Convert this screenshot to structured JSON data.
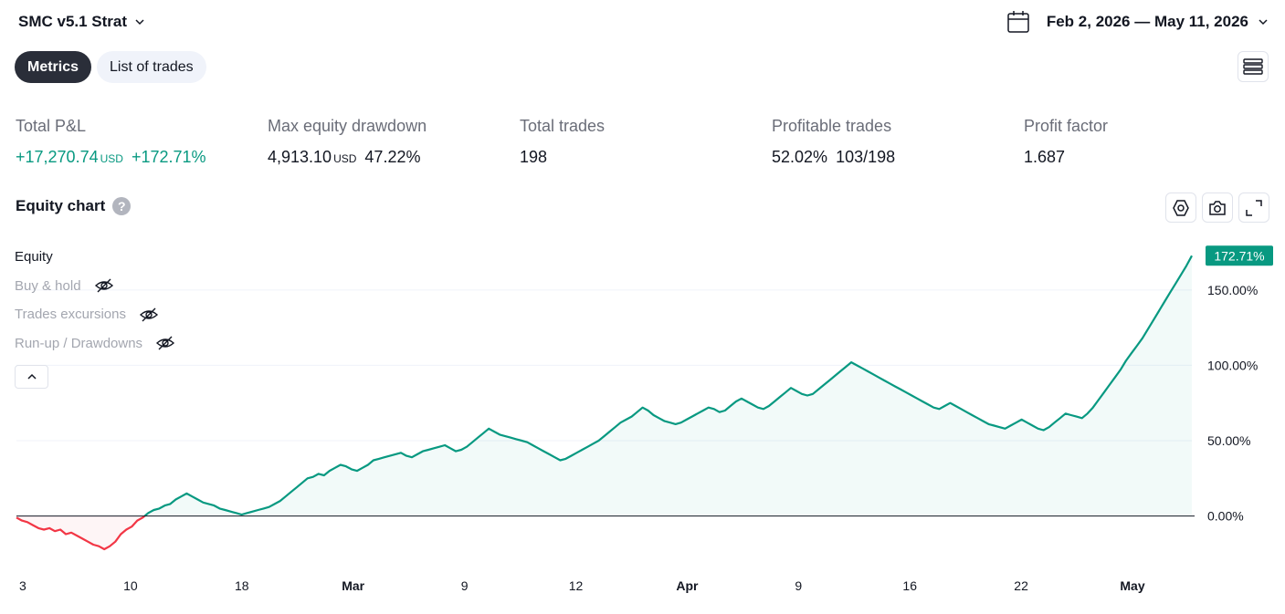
{
  "header": {
    "strategy_name": "SMC v5.1 Strat",
    "date_range": "Feb 2, 2026 — May 11, 2026"
  },
  "tabs": [
    {
      "label": "Metrics",
      "active": true
    },
    {
      "label": "List of trades",
      "active": false
    }
  ],
  "metrics": {
    "total_pnl": {
      "label": "Total P&L",
      "value": "+17,270.74",
      "unit": "USD",
      "percent": "+172.71%"
    },
    "max_drawdown": {
      "label": "Max equity drawdown",
      "value": "4,913.10",
      "unit": "USD",
      "percent": "47.22%"
    },
    "total_trades": {
      "label": "Total trades",
      "value": "198"
    },
    "profitable_trades": {
      "label": "Profitable trades",
      "percent": "52.02%",
      "ratio": "103/198"
    },
    "profit_factor": {
      "label": "Profit factor",
      "value": "1.687"
    }
  },
  "equity_chart": {
    "title": "Equity chart",
    "help_icon": "?",
    "legend": [
      {
        "label": "Equity",
        "visible": true
      },
      {
        "label": "Buy & hold",
        "visible": false
      },
      {
        "label": "Trades excursions",
        "visible": false
      },
      {
        "label": "Run-up / Drawdowns",
        "visible": false
      }
    ]
  },
  "colors": {
    "positive": "#089981",
    "negative": "#f23645",
    "accent_dark": "#2a2e39"
  },
  "chart_data": {
    "type": "area",
    "series": [
      {
        "name": "Equity",
        "values": [
          -1,
          -3,
          -4,
          -6,
          -8,
          -9,
          -8,
          -10,
          -9,
          -12,
          -11,
          -13,
          -15,
          -17,
          -19,
          -20,
          -22,
          -20,
          -17,
          -12,
          -9,
          -7,
          -3,
          -1,
          2,
          4,
          5,
          7,
          8,
          11,
          13,
          15,
          13,
          11,
          9,
          8,
          7,
          5,
          4,
          3,
          2,
          1,
          2,
          3,
          4,
          5,
          6,
          8,
          10,
          13,
          16,
          19,
          22,
          25,
          26,
          28,
          27,
          30,
          32,
          34,
          33,
          31,
          30,
          32,
          34,
          37,
          38,
          39,
          40,
          41,
          42,
          40,
          39,
          41,
          43,
          44,
          45,
          46,
          47,
          45,
          43,
          44,
          46,
          49,
          52,
          55,
          58,
          56,
          54,
          53,
          52,
          51,
          50,
          49,
          47,
          45,
          43,
          41,
          39,
          37,
          38,
          40,
          42,
          44,
          46,
          48,
          50,
          53,
          56,
          59,
          62,
          64,
          66,
          69,
          72,
          70,
          67,
          65,
          63,
          62,
          61,
          62,
          64,
          66,
          68,
          70,
          72,
          71,
          69,
          70,
          73,
          76,
          78,
          76,
          74,
          72,
          71,
          73,
          76,
          79,
          82,
          85,
          83,
          81,
          80,
          81,
          84,
          87,
          90,
          93,
          96,
          99,
          102,
          100,
          98,
          96,
          94,
          92,
          90,
          88,
          86,
          84,
          82,
          80,
          78,
          76,
          74,
          72,
          71,
          73,
          75,
          73,
          71,
          69,
          67,
          65,
          63,
          61,
          60,
          59,
          58,
          60,
          62,
          64,
          62,
          60,
          58,
          57,
          59,
          62,
          65,
          68,
          67,
          66,
          65,
          68,
          72,
          77,
          82,
          87,
          92,
          97,
          103,
          108,
          113,
          118,
          124,
          130,
          136,
          142,
          148,
          154,
          160,
          166,
          172.71
        ]
      }
    ],
    "x_tick_labels": [
      "3",
      "10",
      "18",
      "Mar",
      "9",
      "12",
      "Apr",
      "9",
      "16",
      "22",
      "May"
    ],
    "y_tick_labels": [
      "150.00%",
      "100.00%",
      "50.00%",
      "0.00%"
    ],
    "ylim": [
      -45,
      185
    ],
    "last_value_label": "172.71%",
    "grid": true
  }
}
